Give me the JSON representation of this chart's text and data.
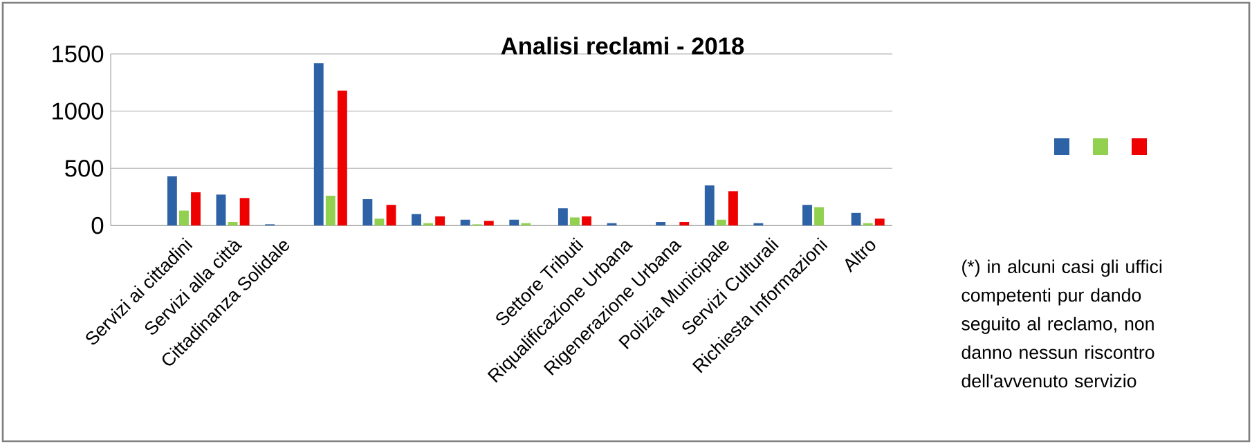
{
  "chart_data": {
    "type": "bar",
    "title": "Analisi reclami - 2018",
    "categories": [
      null,
      "Servizi ai cittadini",
      "Servizi alla città",
      "Cittadinanza Solidale",
      null,
      null,
      null,
      null,
      null,
      "Settore Tributi",
      "Riqualificazione Urbana",
      "Rigenerazione Urbana",
      "Polizia Municipale",
      "Servizi Culturali",
      "Richiesta Informazioni",
      "Altro"
    ],
    "series": [
      {
        "color": "#2e62a6",
        "values": [
          null,
          430,
          270,
          10,
          1420,
          230,
          100,
          50,
          50,
          150,
          20,
          30,
          350,
          20,
          180,
          110
        ]
      },
      {
        "color": "#92d050",
        "values": [
          null,
          130,
          30,
          0,
          260,
          60,
          20,
          10,
          20,
          70,
          0,
          0,
          50,
          0,
          160,
          20
        ]
      },
      {
        "color": "#ee0000",
        "values": [
          null,
          290,
          240,
          0,
          1180,
          180,
          80,
          40,
          0,
          80,
          0,
          30,
          300,
          0,
          0,
          60
        ]
      }
    ],
    "ylim": [
      0,
      1500
    ],
    "yticks": [
      0,
      500,
      1000,
      1500
    ],
    "grid": "y",
    "annotations": [
      "(*) in alcuni casi gli uffici competenti pur dando seguito al reclamo, non danno nessun riscontro dell'avvenuto servizio"
    ]
  }
}
